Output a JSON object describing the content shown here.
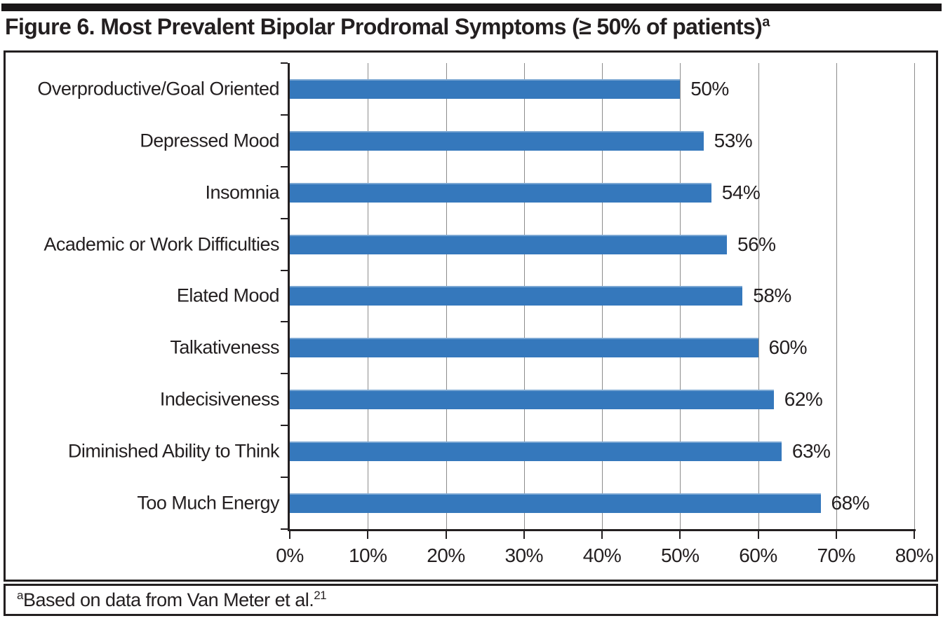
{
  "figure": {
    "title": "Figure 6. Most Prevalent Bipolar Prodromal Symptoms (≥ 50% of patients)",
    "title_superscript": "a",
    "footnote_superscript": "a",
    "footnote_text": "Based on data from Van Meter et al.",
    "footnote_reference": "21"
  },
  "colors": {
    "bar_fill": "#3578bc",
    "gridline": "#8c8c8c",
    "axis": "#231f20",
    "text": "#231f20",
    "top_rule": "#1a1718"
  },
  "chart_data": {
    "type": "bar",
    "orientation": "horizontal",
    "title": "Figure 6. Most Prevalent Bipolar Prodromal Symptoms (≥ 50% of patients)",
    "categories": [
      "Overproductive/Goal Oriented",
      "Depressed Mood",
      "Insomnia",
      "Academic or Work Difficulties",
      "Elated Mood",
      "Talkativeness",
      "Indecisiveness",
      "Diminished Ability to Think",
      "Too Much Energy"
    ],
    "values": [
      50,
      53,
      54,
      56,
      58,
      60,
      62,
      63,
      68
    ],
    "value_labels": [
      "50%",
      "53%",
      "54%",
      "56%",
      "58%",
      "60%",
      "62%",
      "63%",
      "68%"
    ],
    "xlabel": "",
    "ylabel": "",
    "xlim": [
      0,
      80
    ],
    "x_tick_values": [
      0,
      10,
      20,
      30,
      40,
      50,
      60,
      70,
      80
    ],
    "x_tick_labels": [
      "0%",
      "10%",
      "20%",
      "30%",
      "40%",
      "50%",
      "60%",
      "70%",
      "80%"
    ],
    "grid": true,
    "legend": "none"
  }
}
